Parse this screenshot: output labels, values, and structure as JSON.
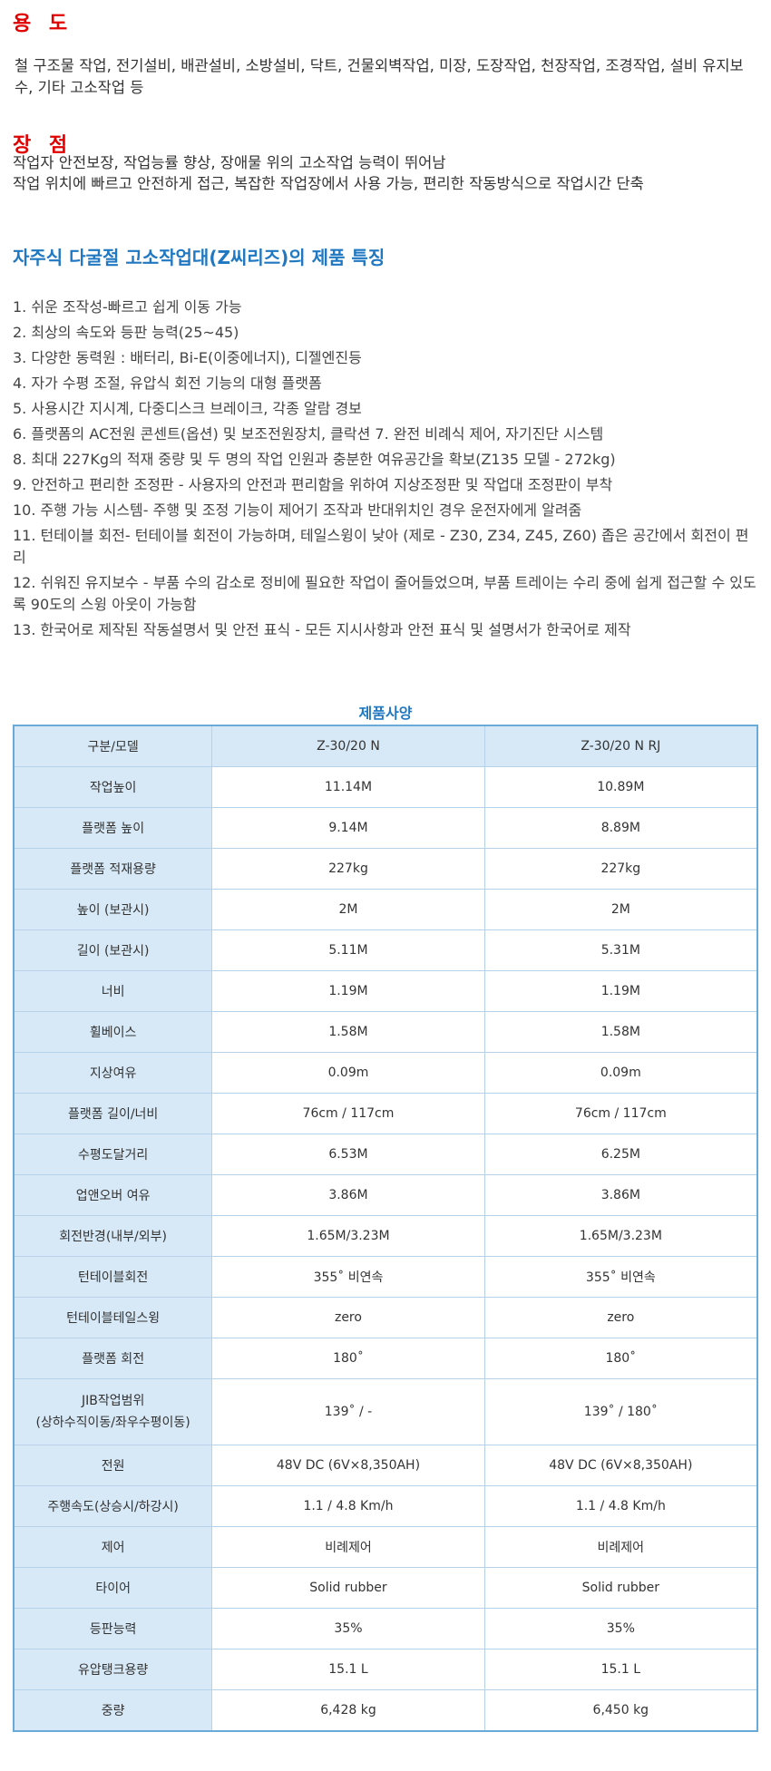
{
  "usage": {
    "title": "용 도",
    "text": "철 구조물 작업, 전기설비, 배관설비, 소방설비, 닥트, 건물외벽작업, 미장, 도장작업, 천장작업, 조경작업, 설비 유지보수, 기타 고소작업 등"
  },
  "advantages": {
    "title": "장 점",
    "lines": [
      "작업자 안전보장, 작업능률 향상, 장애물 위의 고소작업 능력이 뛰어남",
      "작업 위치에 빠르고 안전하게 접근, 복잡한 작업장에서 사용 가능, 편리한 작동방식으로 작업시간 단축"
    ]
  },
  "features": {
    "title": "자주식 다굴절 고소작업대(Z씨리즈)의 제품 특징",
    "items": [
      "1. 쉬운 조작성-빠르고 쉽게 이동 가능",
      "2. 최상의 속도와 등판 능력(25~45)",
      "3. 다양한 동력원 : 배터리, Bi-E(이중에너지), 디젤엔진등",
      "4. 자가 수평 조절, 유압식 회전 기능의 대형 플랫폼",
      "5. 사용시간 지시계, 다중디스크 브레이크, 각종 알람 경보",
      "6. 플랫폼의 AC전원 콘센트(옵션) 및 보조전원장치, 클락션 7. 완전 비례식 제어, 자기진단 시스템",
      "8. 최대 227Kg의 적재 중량 및 두 명의 작업 인원과 충분한 여유공간을 확보(Z135 모델 - 272kg)",
      "9. 안전하고 편리한 조정판 - 사용자의 안전과 편리함을 위하여 지상조정판 및 작업대 조정판이 부착",
      "10. 주행 가능 시스템- 주행 및 조정 기능이 제어기 조작과 반대위치인 경우 운전자에게 알려줌",
      "11. 턴테이블 회전- 턴테이블 회전이 가능하며, 테일스윙이 낮아 (제로 - Z30, Z34, Z45, Z60) 좁은 공간에서 회전이 편리",
      "12. 쉬워진 유지보수 - 부품 수의 감소로 정비에 필요한 작업이 줄어들었으며, 부품 트레이는 수리 중에 쉽게 접근할 수 있도록 90도의 스윙 아웃이 가능함",
      "13. 한국어로 제작된 작동설명서 및 안전 표식 - 모든 지시사항과 안전 표식 및 설명서가 한국어로 제작"
    ]
  },
  "spec": {
    "title": "제품사양",
    "header": [
      "구분/모델",
      "Z-30/20 N",
      "Z-30/20 N RJ"
    ],
    "rows": [
      [
        "작업높이",
        "11.14M",
        "10.89M"
      ],
      [
        "플랫폼 높이",
        "9.14M",
        "8.89M"
      ],
      [
        "플랫폼 적재용량",
        "227kg",
        "227kg"
      ],
      [
        "높이 (보관시)",
        "2M",
        "2M"
      ],
      [
        "길이 (보관시)",
        "5.11M",
        "5.31M"
      ],
      [
        "너비",
        "1.19M",
        "1.19M"
      ],
      [
        "휠베이스",
        "1.58M",
        "1.58M"
      ],
      [
        "지상여유",
        "0.09m",
        "0.09m"
      ],
      [
        "플랫폼 길이/너비",
        "76cm / 117cm",
        "76cm / 117cm"
      ],
      [
        "수평도달거리",
        "6.53M",
        "6.25M"
      ],
      [
        "업앤오버 여유",
        "3.86M",
        "3.86M"
      ],
      [
        "회전반경(내부/외부)",
        "1.65M/3.23M",
        "1.65M/3.23M"
      ],
      [
        "턴테이블회전",
        "355˚ 비연속",
        "355˚ 비연속"
      ],
      [
        "턴테이블테일스윙",
        "zero",
        "zero"
      ],
      [
        "플랫폼 회전",
        "180˚",
        "180˚"
      ],
      [
        "JIB작업범위",
        "139˚ / -",
        "139˚ / 180˚"
      ],
      [
        "전원",
        "48V DC (6V×8,350AH)",
        "48V DC (6V×8,350AH)"
      ],
      [
        "주행속도(상승시/하강시)",
        "1.1 / 4.8 Km/h",
        "1.1 / 4.8 Km/h"
      ],
      [
        "제어",
        "비례제어",
        "비례제어"
      ],
      [
        "타이어",
        "Solid rubber",
        "Solid rubber"
      ],
      [
        "등판능력",
        "35%",
        "35%"
      ],
      [
        "유압탱크용량",
        "15.1 L",
        "15.1 L"
      ],
      [
        "중량",
        "6,428 kg",
        "6,450 kg"
      ]
    ],
    "jib_sub": "(상하수직이동/좌우수평이동)"
  }
}
